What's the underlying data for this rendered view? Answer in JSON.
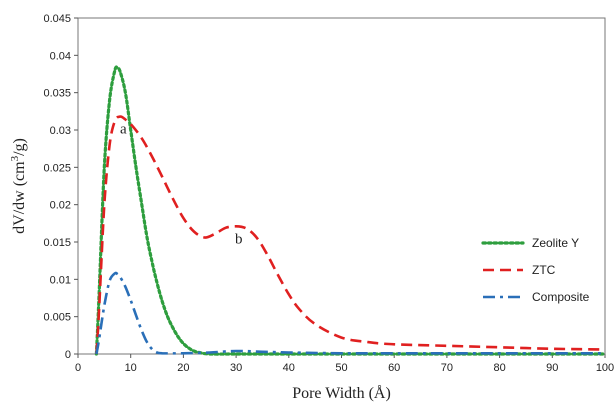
{
  "chart_data": {
    "type": "line",
    "title": "",
    "xlabel": "Pore Width (Å)",
    "ylabel_prefix": "dV/dw (cm",
    "ylabel_sup": "3",
    "ylabel_suffix": "/g)",
    "xlim": [
      0,
      100
    ],
    "ylim": [
      0,
      0.045
    ],
    "x_ticks": [
      0,
      10,
      20,
      30,
      40,
      50,
      60,
      70,
      80,
      90,
      100
    ],
    "x_tick_labels": [
      "0",
      "10",
      "20",
      "30",
      "40",
      "50",
      "60",
      "70",
      "80",
      "90",
      "100"
    ],
    "y_ticks": [
      0,
      0.005,
      0.01,
      0.015,
      0.02,
      0.025,
      0.03,
      0.035,
      0.04,
      0.045
    ],
    "y_tick_labels": [
      "0",
      "0.005",
      "0.01",
      "0.015",
      "0.02",
      "0.025",
      "0.03",
      "0.035",
      "0.04",
      "0.045"
    ],
    "grid": false,
    "legend_position": "right",
    "series": [
      {
        "name": "Zeolite Y",
        "color": "#2e9e3e",
        "style": "dotted",
        "x": [
          3.5,
          4,
          5,
          6,
          7,
          7.5,
          8,
          9,
          10,
          11,
          12,
          13,
          14,
          15,
          16,
          17,
          18,
          19,
          20,
          21,
          22,
          23,
          25,
          30,
          35,
          40,
          50,
          60,
          70,
          80,
          90,
          100
        ],
        "y": [
          0,
          0.008,
          0.025,
          0.034,
          0.038,
          0.0383,
          0.0378,
          0.035,
          0.03,
          0.025,
          0.0205,
          0.016,
          0.0125,
          0.0095,
          0.007,
          0.005,
          0.0035,
          0.0023,
          0.0014,
          0.0008,
          0.0004,
          0.0002,
          0,
          0,
          0,
          0,
          0,
          0,
          0,
          0,
          0,
          0
        ]
      },
      {
        "name": "ZTC",
        "color": "#e02020",
        "style": "dashed",
        "x": [
          3.5,
          4,
          5,
          6,
          7,
          8,
          9,
          10,
          12,
          14,
          16,
          18,
          20,
          22,
          24,
          26,
          28,
          30,
          32,
          34,
          36,
          38,
          40,
          42,
          45,
          50,
          55,
          60,
          70,
          80,
          90,
          100
        ],
        "y": [
          0,
          0.006,
          0.02,
          0.028,
          0.0312,
          0.0318,
          0.0314,
          0.0308,
          0.029,
          0.0265,
          0.0237,
          0.0208,
          0.0182,
          0.0164,
          0.0156,
          0.0161,
          0.0169,
          0.0171,
          0.0168,
          0.0155,
          0.0132,
          0.0105,
          0.008,
          0.006,
          0.004,
          0.0022,
          0.0016,
          0.0013,
          0.0011,
          0.0009,
          0.0007,
          0.0006
        ]
      },
      {
        "name": "Composite",
        "color": "#2a6fb8",
        "style": "dashdot",
        "x": [
          3.5,
          4,
          5,
          6,
          7,
          7.5,
          8,
          9,
          10,
          11,
          12,
          13,
          14,
          15,
          16,
          20,
          25,
          30,
          35,
          40,
          50,
          60,
          70,
          80,
          90,
          100
        ],
        "y": [
          0,
          0.002,
          0.0065,
          0.0098,
          0.0108,
          0.0107,
          0.0103,
          0.009,
          0.0072,
          0.0052,
          0.0033,
          0.0017,
          0.0007,
          0.0002,
          0.0001,
          0.0001,
          0.0002,
          0.0004,
          0.0003,
          0.0002,
          0.0001,
          0.0001,
          0.0001,
          0.0001,
          0.0001,
          0.0001
        ]
      }
    ],
    "annotations": [
      {
        "text": "a",
        "x": 8.6,
        "y": 0.0295
      },
      {
        "text": "b",
        "x": 30.5,
        "y": 0.0148
      }
    ]
  }
}
